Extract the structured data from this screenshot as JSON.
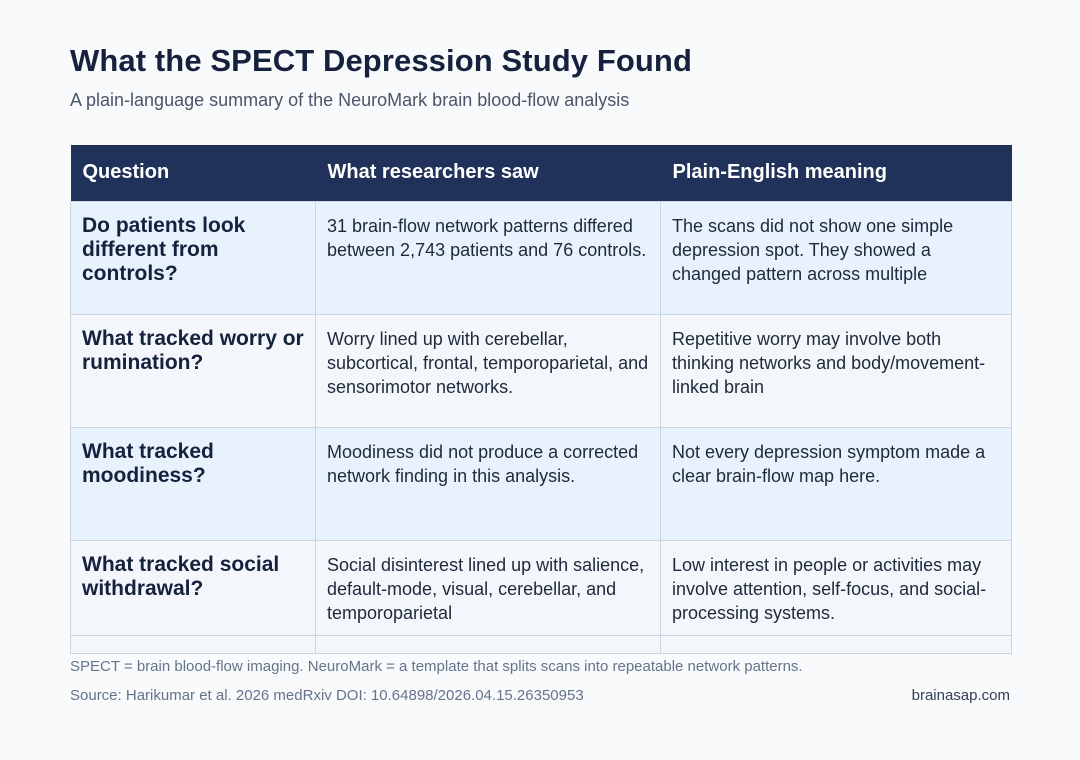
{
  "title": "What the SPECT Depression Study Found",
  "subtitle": "A plain-language summary of the NeuroMark brain blood-flow analysis",
  "table": {
    "headers": [
      "Question",
      "What researchers saw",
      "Plain-English meaning"
    ],
    "rows": [
      {
        "question": "Do patients look different from controls?",
        "saw": "31 brain-flow network patterns differed between 2,743 patients and 76 controls.",
        "meaning": "The scans did not show one simple depression spot. They showed a changed pattern across multiple"
      },
      {
        "question": "What tracked worry or rumination?",
        "saw": "Worry lined up with cerebellar, subcortical, frontal, temporoparietal, and sensorimotor networks.",
        "meaning": "Repetitive worry may involve both thinking networks and body/movement-linked brain"
      },
      {
        "question": "What tracked moodiness?",
        "saw": "Moodiness did not produce a corrected network finding in this analysis.",
        "meaning": "Not every depression symptom made a clear brain-flow map here."
      },
      {
        "question": "What tracked social withdrawal?",
        "saw": "Social disinterest lined up with salience, default-mode, visual, cerebellar, and temporoparietal",
        "meaning": "Low interest in people or activities may involve attention, self-focus, and social-processing systems."
      }
    ]
  },
  "footnote": "SPECT = brain blood-flow imaging. NeuroMark = a template that splits scans into repeatable network patterns.",
  "source": "Source: Harikumar et al. 2026 medRxiv DOI: 10.64898/2026.04.15.26350953",
  "site": "brainasap.com"
}
